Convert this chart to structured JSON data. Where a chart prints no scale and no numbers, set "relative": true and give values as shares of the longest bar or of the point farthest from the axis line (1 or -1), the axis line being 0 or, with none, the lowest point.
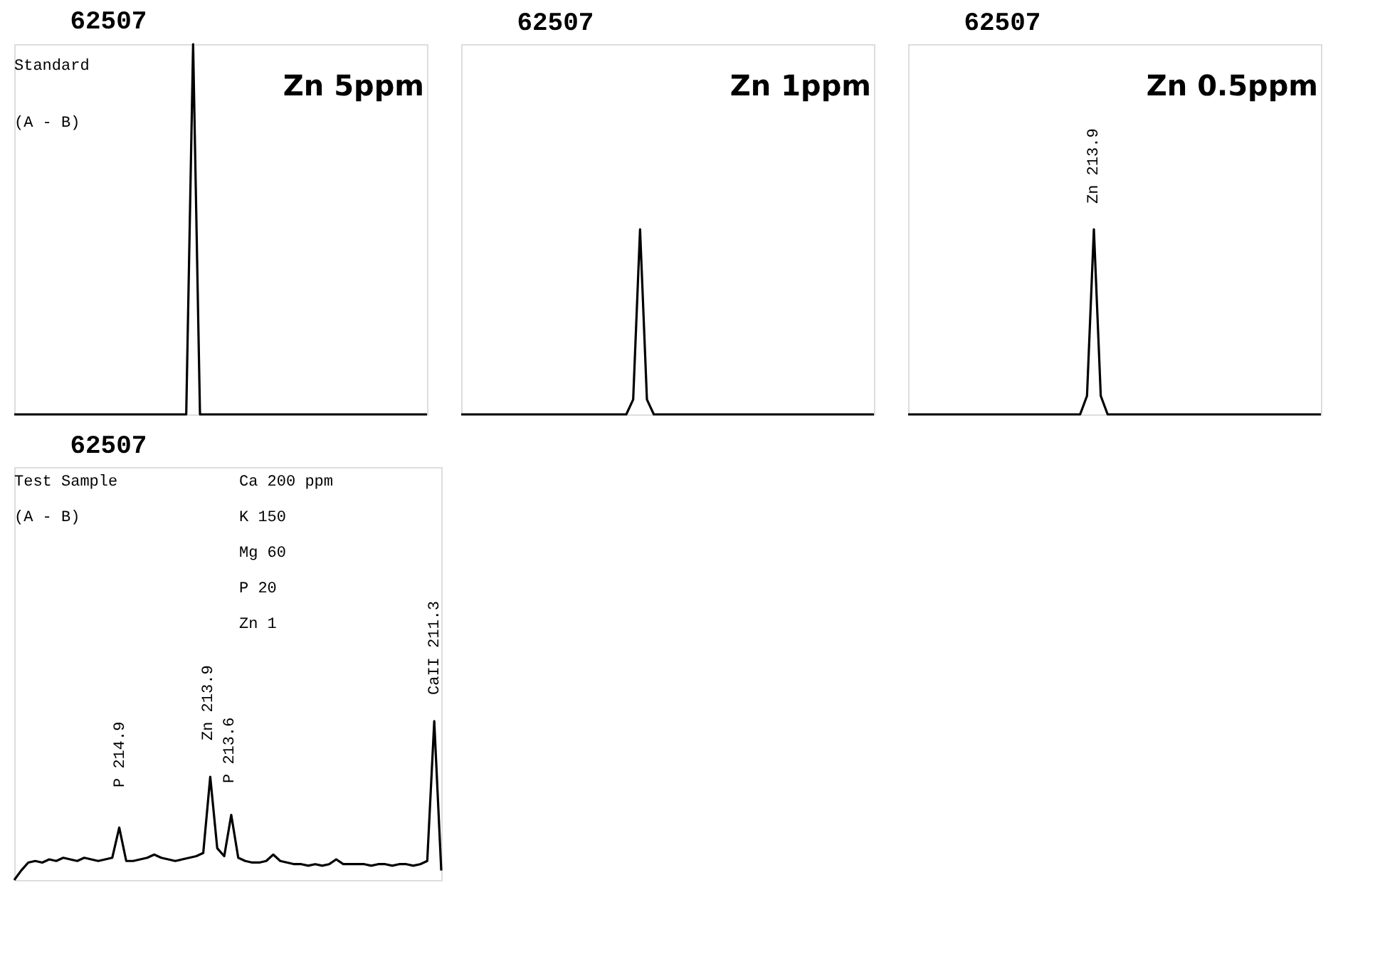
{
  "chart_data": [
    {
      "type": "line",
      "title": "62507",
      "subtitle": "Zn 5ppm",
      "relative": true,
      "tick_labels": false,
      "color": "#000000",
      "annotations": [
        "Standard",
        "(A - B)"
      ],
      "categories": [
        null,
        null,
        null,
        null,
        null,
        null,
        null,
        null,
        null,
        null,
        null,
        null,
        null,
        null,
        null,
        null,
        null,
        null,
        null,
        null,
        null,
        null,
        null,
        null,
        null,
        null,
        null,
        null,
        null,
        null,
        null,
        null,
        null,
        null,
        null,
        null,
        null,
        null,
        null,
        null,
        null,
        null,
        null,
        null,
        null,
        null,
        null,
        null,
        null,
        null,
        null,
        null,
        null,
        null,
        null,
        null,
        null,
        null,
        null,
        null,
        null
      ],
      "values": [
        0,
        0,
        0,
        0,
        0,
        0,
        0,
        0,
        0,
        0,
        0,
        0,
        0,
        0,
        0,
        0,
        0,
        0,
        0,
        0,
        0,
        0,
        0,
        0,
        0,
        0,
        1.0,
        0,
        0,
        0,
        0,
        0,
        0,
        0,
        0,
        0,
        0,
        0,
        0,
        0,
        0,
        0,
        0,
        0,
        0,
        0,
        0,
        0,
        0,
        0,
        0,
        0,
        0,
        0,
        0,
        0,
        0,
        0,
        0,
        0,
        0
      ]
    },
    {
      "type": "line",
      "title": "62507",
      "subtitle": "Zn 1ppm",
      "relative": true,
      "tick_labels": false,
      "color": "#000000",
      "categories": [
        null,
        null,
        null,
        null,
        null,
        null,
        null,
        null,
        null,
        null,
        null,
        null,
        null,
        null,
        null,
        null,
        null,
        null,
        null,
        null,
        null,
        null,
        null,
        null,
        null,
        null,
        null,
        null,
        null,
        null,
        null,
        null,
        null,
        null,
        null,
        null,
        null,
        null,
        null,
        null,
        null,
        null,
        null,
        null,
        null,
        null,
        null,
        null,
        null,
        null,
        null,
        null,
        null,
        null,
        null,
        null,
        null,
        null,
        null,
        null,
        null
      ],
      "values": [
        0,
        0,
        0,
        0,
        0,
        0,
        0,
        0,
        0,
        0,
        0,
        0,
        0,
        0,
        0,
        0,
        0,
        0,
        0,
        0,
        0,
        0,
        0,
        0,
        0,
        0.08,
        1.0,
        0.08,
        0,
        0,
        0,
        0,
        0,
        0,
        0,
        0,
        0,
        0,
        0,
        0,
        0,
        0,
        0,
        0,
        0,
        0,
        0,
        0,
        0,
        0,
        0,
        0,
        0,
        0,
        0,
        0,
        0,
        0,
        0,
        0,
        0
      ]
    },
    {
      "type": "line",
      "title": "62507",
      "subtitle": "Zn 0.5ppm",
      "relative": true,
      "tick_labels": false,
      "color": "#000000",
      "annotations": [
        "Zn 213.9"
      ],
      "categories": [
        null,
        null,
        null,
        null,
        null,
        null,
        null,
        null,
        null,
        null,
        null,
        null,
        null,
        null,
        null,
        null,
        null,
        null,
        null,
        null,
        null,
        null,
        null,
        null,
        null,
        null,
        null,
        null,
        null,
        null,
        null,
        null,
        null,
        null,
        null,
        null,
        null,
        null,
        null,
        null,
        null,
        null,
        null,
        null,
        null,
        null,
        null,
        null,
        null,
        null,
        null,
        null,
        null,
        null,
        null,
        null,
        null,
        null,
        null,
        null,
        null
      ],
      "values": [
        0,
        0,
        0,
        0,
        0,
        0,
        0,
        0,
        0,
        0,
        0,
        0,
        0,
        0,
        0,
        0,
        0,
        0,
        0,
        0,
        0,
        0,
        0,
        0,
        0,
        0,
        0.1,
        1.0,
        0.1,
        0,
        0,
        0,
        0,
        0,
        0,
        0,
        0,
        0,
        0,
        0,
        0,
        0,
        0,
        0,
        0,
        0,
        0,
        0,
        0,
        0,
        0,
        0,
        0,
        0,
        0,
        0,
        0,
        0,
        0,
        0,
        0
      ]
    },
    {
      "type": "line",
      "title": "62507",
      "relative": true,
      "tick_labels": false,
      "color": "#000000",
      "annotations": [
        "Test Sample",
        "(A - B)",
        "Ca 200 ppm",
        "K 150",
        "Mg 60",
        "P 20",
        "Zn 1",
        "P 214.9",
        "Zn 213.9",
        "P 213.6",
        "CaII 211.3"
      ],
      "categories": [
        null,
        null,
        null,
        null,
        null,
        null,
        null,
        null,
        null,
        null,
        null,
        null,
        null,
        null,
        null,
        null,
        null,
        null,
        null,
        null,
        null,
        null,
        null,
        null,
        null,
        null,
        null,
        null,
        null,
        null,
        null,
        null,
        null,
        null,
        null,
        null,
        null,
        null,
        null,
        null,
        null,
        null,
        null,
        null,
        null,
        null,
        null,
        null,
        null,
        null,
        null,
        null,
        null,
        null,
        null,
        null,
        null,
        null,
        null,
        null,
        null,
        null
      ],
      "values": [
        0,
        0.06,
        0.11,
        0.12,
        0.11,
        0.13,
        0.12,
        0.14,
        0.13,
        0.12,
        0.14,
        0.13,
        0.12,
        0.13,
        0.14,
        0.33,
        0.12,
        0.12,
        0.13,
        0.14,
        0.16,
        0.14,
        0.13,
        0.12,
        0.13,
        0.14,
        0.15,
        0.17,
        0.65,
        0.2,
        0.15,
        0.41,
        0.14,
        0.12,
        0.11,
        0.11,
        0.12,
        0.16,
        0.12,
        0.11,
        0.1,
        0.1,
        0.09,
        0.1,
        0.09,
        0.1,
        0.13,
        0.1,
        0.1,
        0.1,
        0.1,
        0.09,
        0.1,
        0.1,
        0.09,
        0.1,
        0.1,
        0.09,
        0.1,
        0.12,
        1.0,
        0.06
      ]
    }
  ]
}
